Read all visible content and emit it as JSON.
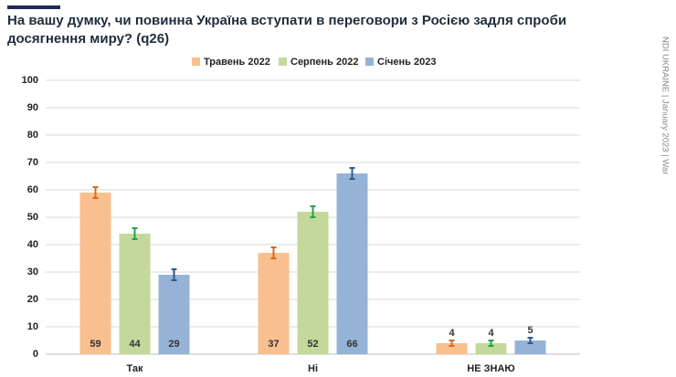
{
  "chart_data": {
    "type": "bar",
    "title": "На вашу думку, чи повинна Україна вступати в переговори з Росією задля спроби досягнення миру? (q26)",
    "side_note": "NDI UKRAINE | January 2023 | War",
    "categories": [
      "Так",
      "Ні",
      "НЕ ЗНАЮ"
    ],
    "series": [
      {
        "name": "Травень 2022",
        "color": "#f9bf8f",
        "error_color": "#d9681c",
        "values": [
          59,
          37,
          4
        ],
        "errors": [
          2,
          2,
          1
        ]
      },
      {
        "name": "Серпень 2022",
        "color": "#c3d99b",
        "error_color": "#27a34a",
        "values": [
          44,
          52,
          4
        ],
        "errors": [
          2,
          2,
          1
        ]
      },
      {
        "name": "Січень 2023",
        "color": "#95b3d7",
        "error_color": "#2e5a8a",
        "values": [
          29,
          66,
          5
        ],
        "errors": [
          2,
          2,
          1
        ]
      }
    ],
    "ylim": [
      0,
      100
    ],
    "yticks": [
      0,
      10,
      20,
      30,
      40,
      50,
      60,
      70,
      80,
      90,
      100
    ],
    "grid": true,
    "legend": "top"
  }
}
